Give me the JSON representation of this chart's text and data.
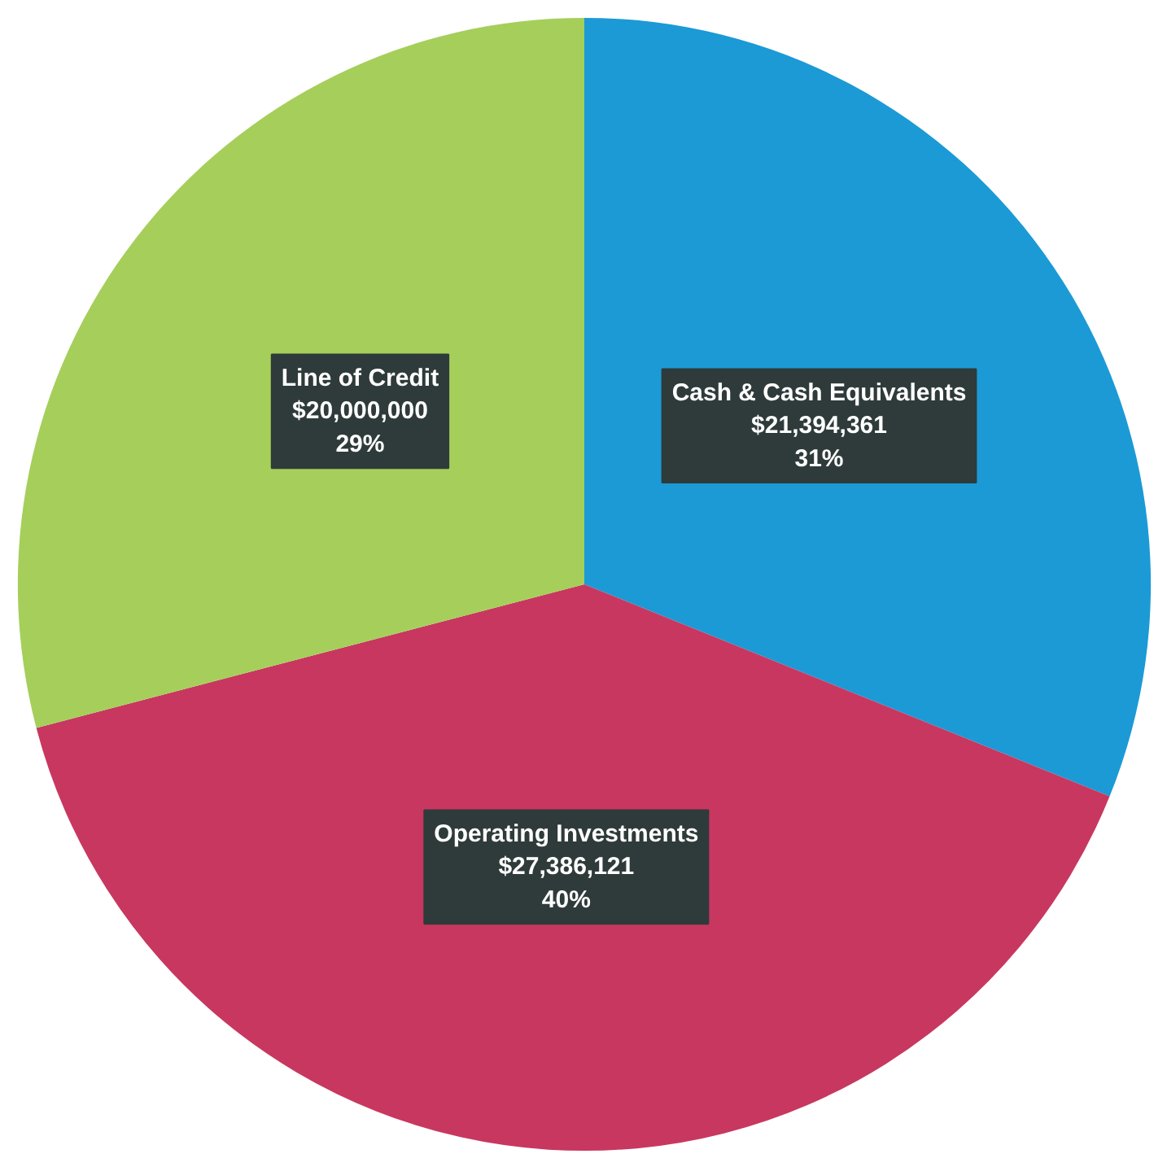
{
  "chart_data": {
    "type": "pie",
    "categories": [
      "Cash & Cash Equivalents",
      "Operating Investments",
      "Line of Credit"
    ],
    "values": [
      21394361,
      27386121,
      20000000
    ],
    "colors": [
      "#1b9ad6",
      "#c8375f",
      "#a5cf5a"
    ],
    "value_labels": [
      "$21,394,361\n31%",
      "$27,386,121\n40%",
      "$20,000,000\n29%"
    ]
  }
}
